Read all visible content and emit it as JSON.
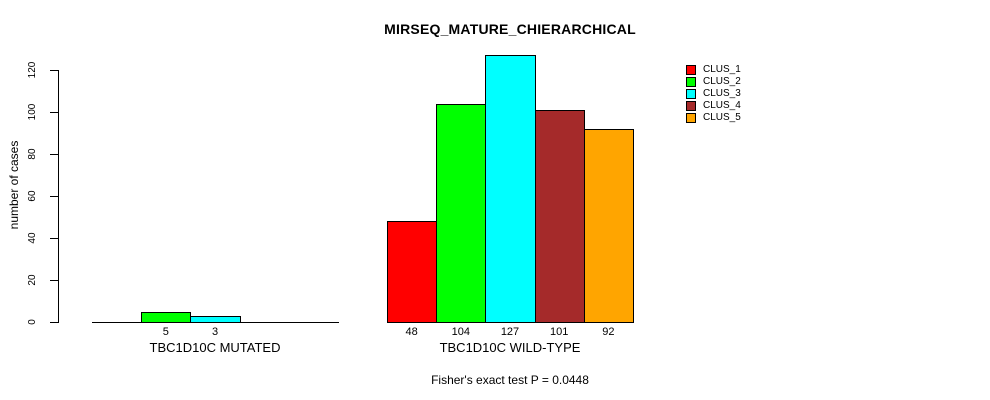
{
  "chart_data": {
    "type": "bar",
    "title": "MIRSEQ_MATURE_CHIERARCHICAL",
    "xlabel": "",
    "ylabel": "number of cases",
    "ylim": [
      0,
      130
    ],
    "yticks": [
      0,
      20,
      40,
      60,
      80,
      100,
      120
    ],
    "grid": false,
    "legend_position": "right",
    "annotation": "Fisher's exact test P = 0.0448",
    "series": [
      {
        "name": "CLUS_1",
        "color": "#FF0000"
      },
      {
        "name": "CLUS_2",
        "color": "#00FF00"
      },
      {
        "name": "CLUS_3",
        "color": "#00FFFF"
      },
      {
        "name": "CLUS_4",
        "color": "#A52A2A"
      },
      {
        "name": "CLUS_5",
        "color": "#FFA500"
      }
    ],
    "groups": [
      {
        "label": "TBC1D10C MUTATED",
        "values": [
          0,
          5,
          3,
          0,
          0
        ]
      },
      {
        "label": "TBC1D10C WILD-TYPE",
        "values": [
          48,
          104,
          127,
          101,
          92
        ]
      }
    ]
  }
}
